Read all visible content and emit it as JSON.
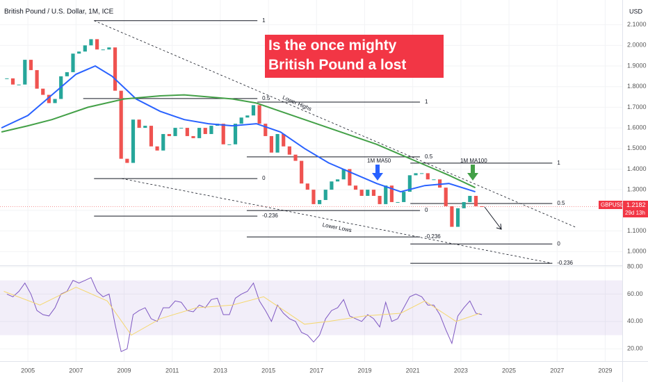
{
  "chart_data": {
    "type": "candlestick",
    "title": "British Pound / U.S. Dollar, 1M, ICE",
    "headline": "Is the once mighty British Pound a lost cause?",
    "currency": "USD",
    "symbol": "GBPUSD",
    "countdown": "29d 13h",
    "up_color": "#26a69a",
    "down_color": "#ef5350",
    "grid": true,
    "xlim": [
      2003.84,
      2029.71
    ],
    "xticks": [
      2005,
      2007,
      2009,
      2011,
      2013,
      2015,
      2017,
      2019,
      2021,
      2023,
      2025,
      2027,
      2029
    ],
    "ylim": [
      0.94,
      2.22
    ],
    "yticks": [
      {
        "value": 1.0,
        "label": "1.0000"
      },
      {
        "value": 1.1,
        "label": "1.1000"
      },
      {
        "value": 1.2,
        "label": "1.2000"
      },
      {
        "value": 1.3,
        "label": "1.3000"
      },
      {
        "value": 1.4,
        "label": "1.4000"
      },
      {
        "value": 1.5,
        "label": "1.5000"
      },
      {
        "value": 1.6,
        "label": "1.6000"
      },
      {
        "value": 1.7,
        "label": "1.7000"
      },
      {
        "value": 1.8,
        "label": "1.8000"
      },
      {
        "value": 1.9,
        "label": "1.9000"
      },
      {
        "value": 2.0,
        "label": "2.0000"
      },
      {
        "value": 2.1,
        "label": "2.1000"
      }
    ],
    "x": [
      2004.125,
      2004.375,
      2004.625,
      2004.875,
      2005.125,
      2005.375,
      2005.625,
      2005.875,
      2006.125,
      2006.375,
      2006.625,
      2006.875,
      2007.125,
      2007.375,
      2007.625,
      2007.875,
      2008.125,
      2008.375,
      2008.625,
      2008.875,
      2009.125,
      2009.375,
      2009.625,
      2009.875,
      2010.125,
      2010.375,
      2010.625,
      2010.875,
      2011.125,
      2011.375,
      2011.625,
      2011.875,
      2012.125,
      2012.375,
      2012.625,
      2012.875,
      2013.125,
      2013.375,
      2013.625,
      2013.875,
      2014.125,
      2014.375,
      2014.625,
      2014.875,
      2015.125,
      2015.375,
      2015.625,
      2015.875,
      2016.125,
      2016.375,
      2016.625,
      2016.875,
      2017.125,
      2017.375,
      2017.625,
      2017.875,
      2018.125,
      2018.375,
      2018.625,
      2018.875,
      2019.125,
      2019.375,
      2019.625,
      2019.875,
      2020.125,
      2020.375,
      2020.625,
      2020.875,
      2021.125,
      2021.375,
      2021.625,
      2021.875,
      2022.125,
      2022.375,
      2022.625,
      2022.875,
      2023.125,
      2023.375,
      2023.625,
      2023.875
    ],
    "close": [
      1.84,
      1.81,
      1.81,
      1.93,
      1.88,
      1.79,
      1.76,
      1.72,
      1.74,
      1.85,
      1.87,
      1.96,
      1.97,
      2.0,
      2.03,
      1.98,
      1.98,
      1.99,
      1.78,
      1.45,
      1.43,
      1.64,
      1.6,
      1.61,
      1.51,
      1.49,
      1.57,
      1.56,
      1.6,
      1.6,
      1.56,
      1.55,
      1.6,
      1.57,
      1.61,
      1.62,
      1.52,
      1.52,
      1.62,
      1.65,
      1.66,
      1.71,
      1.62,
      1.56,
      1.48,
      1.57,
      1.51,
      1.47,
      1.44,
      1.33,
      1.3,
      1.23,
      1.25,
      1.3,
      1.34,
      1.35,
      1.4,
      1.32,
      1.3,
      1.27,
      1.3,
      1.27,
      1.23,
      1.32,
      1.24,
      1.24,
      1.29,
      1.37,
      1.38,
      1.38,
      1.35,
      1.35,
      1.31,
      1.22,
      1.12,
      1.21,
      1.24,
      1.27,
      1.22,
      1.2182
    ],
    "series": [
      {
        "color": "#2962ff",
        "x": [
          2003.9,
          2005,
          2006,
          2007,
          2007.8,
          2008.5,
          2009.5,
          2010.5,
          2011.5,
          2012.5,
          2013.5,
          2014.5,
          2015.5,
          2016.5,
          2017.5,
          2018.5,
          2019.5,
          2020.5,
          2021.5,
          2022.5,
          2023.6
        ],
        "values": [
          1.6,
          1.66,
          1.76,
          1.86,
          1.9,
          1.85,
          1.74,
          1.68,
          1.64,
          1.62,
          1.61,
          1.62,
          1.58,
          1.5,
          1.43,
          1.38,
          1.33,
          1.29,
          1.32,
          1.33,
          1.29
        ]
      },
      {
        "color": "#43a047",
        "x": [
          2003.9,
          2005,
          2006,
          2007.5,
          2009,
          2010.5,
          2011.5,
          2012.5,
          2013.5,
          2014.5,
          2015.5,
          2016.5,
          2017.5,
          2018.5,
          2019.5,
          2020.5,
          2021.5,
          2022.5,
          2023.6
        ],
        "values": [
          1.58,
          1.61,
          1.64,
          1.7,
          1.74,
          1.755,
          1.76,
          1.75,
          1.74,
          1.72,
          1.68,
          1.64,
          1.6,
          1.56,
          1.52,
          1.47,
          1.42,
          1.37,
          1.31
        ]
      }
    ],
    "levels": [
      {
        "label": "1",
        "y": 2.12,
        "x": [
          2007.75,
          2014.54
        ]
      },
      {
        "label": "0.5",
        "y": 1.742,
        "x": [
          2007.3,
          2014.54
        ]
      },
      {
        "label": "0",
        "y": 1.354,
        "x": [
          2007.75,
          2014.54
        ]
      },
      {
        "label": "-0.236",
        "y": 1.172,
        "x": [
          2007.75,
          2014.54
        ]
      },
      {
        "label": "1",
        "y": 1.725,
        "x": [
          2014.54,
          2021.3
        ]
      },
      {
        "label": "0.5",
        "y": 1.459,
        "x": [
          2014.1,
          2021.3
        ]
      },
      {
        "label": "0",
        "y": 1.199,
        "x": [
          2014.1,
          2021.3
        ]
      },
      {
        "label": "-0.236",
        "y": 1.071,
        "x": [
          2014.1,
          2021.3
        ]
      },
      {
        "label": "1",
        "y": 1.429,
        "x": [
          2020.9,
          2026.8
        ]
      },
      {
        "label": "0.5",
        "y": 1.233,
        "x": [
          2020.9,
          2026.8
        ]
      },
      {
        "label": "0",
        "y": 1.037,
        "x": [
          2020.9,
          2026.8
        ]
      },
      {
        "label": "-0.236",
        "y": 0.943,
        "x": [
          2020.9,
          2026.8
        ]
      }
    ],
    "trendlines": [
      {
        "label": "Lower Highs",
        "x": [
          2007.75,
          2027.83
        ],
        "y": [
          2.12,
          1.115
        ]
      },
      {
        "label": "Lower Lows",
        "x": [
          2008.9,
          2026.8
        ],
        "y": [
          1.354,
          0.943
        ]
      }
    ],
    "annotations": [
      "1M MA50",
      "1M MA100"
    ],
    "rsi": {
      "color": "#7e57c2",
      "ma_color": "#f5d76e",
      "ylim": [
        11,
        81
      ],
      "band": [
        30,
        70
      ],
      "yticks": [
        {
          "value": 20,
          "label": "20.00"
        },
        {
          "value": 40,
          "label": "40.00"
        },
        {
          "value": 60,
          "label": "60.00"
        },
        {
          "value": 80,
          "label": "80.00"
        }
      ],
      "values": [
        60,
        58,
        62,
        68,
        60,
        48,
        45,
        44,
        50,
        60,
        62,
        70,
        68,
        70,
        72,
        62,
        58,
        60,
        38,
        18,
        20,
        45,
        48,
        50,
        42,
        40,
        50,
        50,
        55,
        54,
        48,
        47,
        52,
        50,
        56,
        57,
        45,
        45,
        57,
        60,
        62,
        68,
        55,
        48,
        40,
        52,
        46,
        42,
        40,
        32,
        30,
        25,
        30,
        42,
        48,
        50,
        56,
        44,
        42,
        40,
        45,
        42,
        36,
        54,
        40,
        42,
        50,
        58,
        60,
        58,
        52,
        52,
        45,
        34,
        24,
        44,
        50,
        55,
        46,
        45
      ],
      "ma_x": [
        2004,
        2005.5,
        2007,
        2008.3,
        2009.3,
        2010.5,
        2012,
        2013.5,
        2014.8,
        2016.5,
        2017.5,
        2019,
        2020.5,
        2021.5,
        2022.8,
        2023.8
      ],
      "ma_values": [
        62,
        52,
        65,
        55,
        30,
        42,
        50,
        52,
        58,
        38,
        40,
        44,
        46,
        55,
        40,
        46
      ]
    }
  }
}
